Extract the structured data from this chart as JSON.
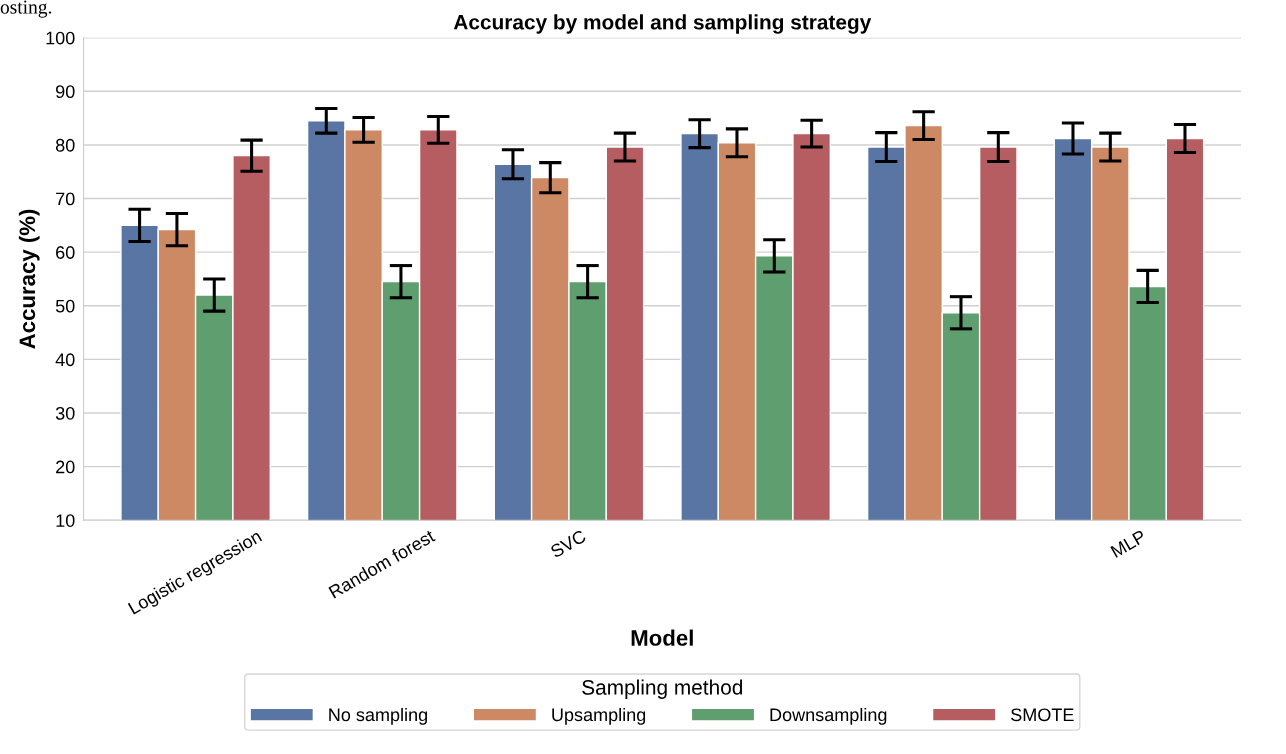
{
  "chart_data": {
    "type": "bar",
    "title": "Accuracy by model and sampling strategy",
    "xlabel": "Model",
    "ylabel": "Accuracy (%)",
    "legend_title": "Sampling method",
    "categories": [
      "Logistic regression",
      "Random forest",
      "SVC",
      null,
      null,
      "MLP"
    ],
    "series": [
      {
        "name": "No sampling",
        "color": "#5875a4",
        "values": [
          65.0,
          84.5,
          76.4,
          82.1,
          79.6,
          81.2
        ],
        "errors": [
          3.0,
          2.3,
          2.7,
          2.6,
          2.7,
          2.9
        ]
      },
      {
        "name": "Upsampling",
        "color": "#cc8963",
        "values": [
          64.2,
          82.8,
          73.9,
          80.4,
          83.6,
          79.6
        ],
        "errors": [
          3.0,
          2.3,
          2.8,
          2.6,
          2.6,
          2.6
        ]
      },
      {
        "name": "Downsampling",
        "color": "#5f9e6e",
        "values": [
          52.0,
          54.5,
          54.5,
          59.3,
          48.7,
          53.6
        ],
        "errors": [
          3.0,
          3.0,
          3.0,
          3.0,
          3.0,
          3.0
        ]
      },
      {
        "name": "SMOTE",
        "color": "#b55d60",
        "values": [
          78.0,
          82.8,
          79.6,
          82.1,
          79.6,
          81.2
        ],
        "errors": [
          2.9,
          2.5,
          2.6,
          2.5,
          2.7,
          2.6
        ]
      }
    ],
    "ylim": [
      10,
      100
    ],
    "yticks": [
      10,
      20,
      30,
      40,
      50,
      60,
      70,
      80,
      90,
      100
    ],
    "grid": "y",
    "legend": "bottom",
    "annotations": [
      "osting."
    ]
  }
}
